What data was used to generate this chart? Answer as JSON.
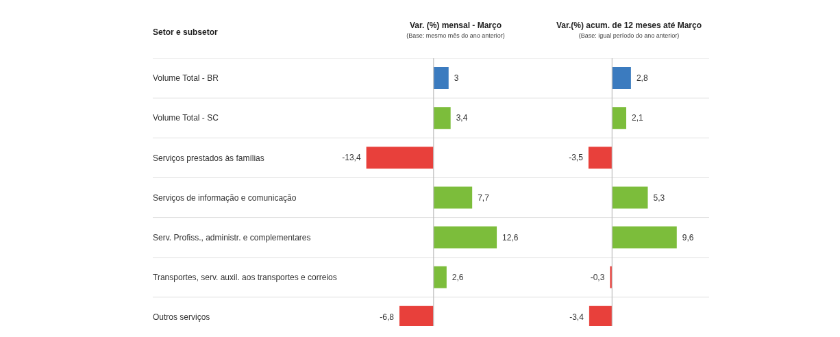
{
  "chart_data": [
    {
      "type": "bar",
      "orientation": "horizontal",
      "title": "Var. (%) mensal - Março",
      "subtitle": "(Base: mesmo mês do ano anterior)",
      "ylabel": "Setor e subsetor",
      "categories": [
        "Volume Total - BR",
        "Volume Total - SC",
        "Serviços prestados às famílias",
        "Serviços de informação e comunicação",
        "Serv. Profiss., administr. e complementares",
        "Transportes, serv. auxil. aos transportes e correios",
        "Outros serviços"
      ],
      "values": [
        3,
        3.4,
        -13.4,
        7.7,
        12.6,
        2.6,
        -6.8
      ],
      "value_labels": [
        "3",
        "3,4",
        "-13,4",
        "7,7",
        "12,6",
        "2,6",
        "-6,8"
      ],
      "colors": [
        "#3b7bbf",
        "#7cbd3b",
        "#e8403b",
        "#7cbd3b",
        "#7cbd3b",
        "#7cbd3b",
        "#e8403b"
      ],
      "ref_lines": [
        {
          "axis": "x",
          "value": 0,
          "color": "#c0c0c0"
        }
      ],
      "grid": "y",
      "tick_labels": "y"
    },
    {
      "type": "bar",
      "orientation": "horizontal",
      "title": "Var.(%) acum. de 12 meses até Março",
      "subtitle": "(Base: igual período do ano anterior)",
      "categories": [
        null,
        null,
        null,
        null,
        null,
        null,
        null
      ],
      "values": [
        2.8,
        2.1,
        -3.5,
        5.3,
        9.6,
        -0.3,
        -3.4
      ],
      "value_labels": [
        "2,8",
        "2,1",
        "-3,5",
        "5,3",
        "9,6",
        "-0,3",
        "-3,4"
      ],
      "colors": [
        "#3b7bbf",
        "#7cbd3b",
        "#e8403b",
        "#7cbd3b",
        "#7cbd3b",
        "#e8403b",
        "#e8403b"
      ],
      "ref_lines": [
        {
          "axis": "x",
          "value": 0,
          "color": "#c0c0c0"
        }
      ],
      "grid": "y",
      "tick_labels": false
    }
  ]
}
